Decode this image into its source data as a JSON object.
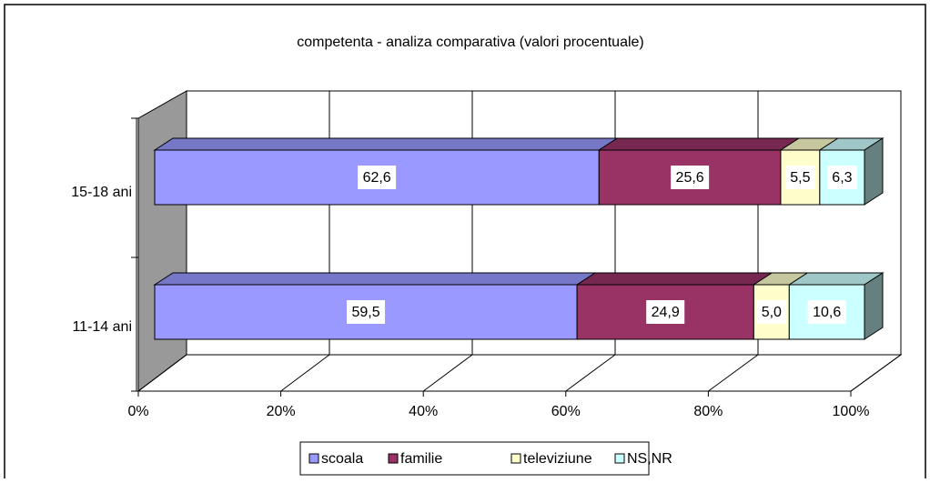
{
  "chart_data": {
    "type": "bar3d_stacked_horizontal",
    "title": "competenta - analiza comparativa (valori procentuale)",
    "categories": [
      "11-14 ani",
      "15-18 ani"
    ],
    "series": [
      {
        "name": "scoala",
        "color": "#9999ff",
        "values": [
          59.5,
          62.6
        ],
        "value_labels": [
          "59,5",
          "62,6"
        ]
      },
      {
        "name": "familie",
        "color": "#993366",
        "values": [
          24.9,
          25.6
        ],
        "value_labels": [
          "24,9",
          "25,6"
        ]
      },
      {
        "name": "televiziune",
        "color": "#ffffcc",
        "values": [
          5.0,
          5.5
        ],
        "value_labels": [
          "5,0",
          "5,5"
        ]
      },
      {
        "name": "NS,NR",
        "color": "#ccffff",
        "values": [
          10.6,
          6.3
        ],
        "value_labels": [
          "10,6",
          "6,3"
        ]
      }
    ],
    "xlim": [
      0,
      100
    ],
    "xticks": [
      {
        "value": 0,
        "label": "0%"
      },
      {
        "value": 20,
        "label": "20%"
      },
      {
        "value": 40,
        "label": "40%"
      },
      {
        "value": 60,
        "label": "60%"
      },
      {
        "value": 80,
        "label": "80%"
      },
      {
        "value": 100,
        "label": "100%"
      }
    ],
    "grid": true,
    "legend": "bottom"
  }
}
